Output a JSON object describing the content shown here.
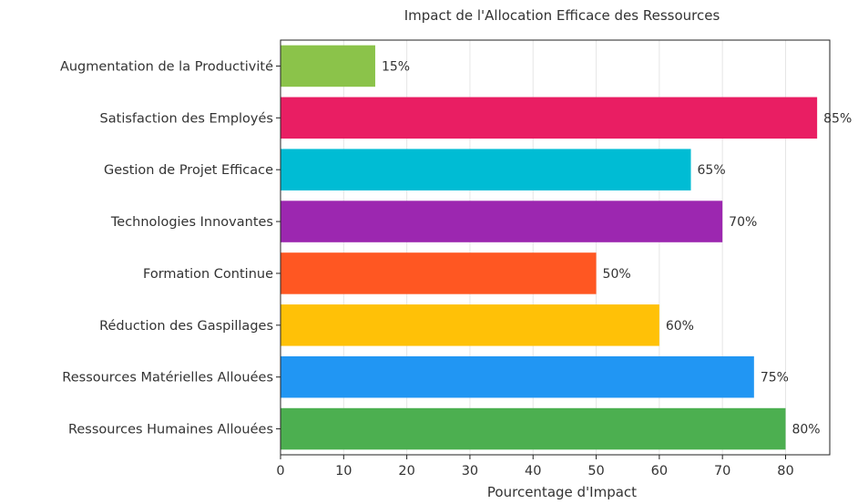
{
  "chart_data": {
    "type": "bar",
    "orientation": "horizontal",
    "title": "Impact de l'Allocation Efficace des Ressources",
    "xlabel": "Pourcentage d'Impact",
    "ylabel": "",
    "categories": [
      "Augmentation de la Productivité",
      "Satisfaction des Employés",
      "Gestion de Projet Efficace",
      "Technologies Innovantes",
      "Formation Continue",
      "Réduction des Gaspillages",
      "Ressources Matérielles Allouées",
      "Ressources Humaines Allouées"
    ],
    "values": [
      15,
      85,
      65,
      70,
      50,
      60,
      75,
      80
    ],
    "data_labels": [
      "15%",
      "85%",
      "65%",
      "70%",
      "50%",
      "60%",
      "75%",
      "80%"
    ],
    "colors": [
      "#8bc34a",
      "#e91e63",
      "#00bcd4",
      "#9c27b0",
      "#ff5722",
      "#ffc107",
      "#2196f3",
      "#4caf50"
    ],
    "xlim": [
      0,
      87
    ],
    "xticks": [
      0,
      10,
      20,
      30,
      40,
      50,
      60,
      70,
      80
    ],
    "grid": true,
    "legend": "none"
  }
}
